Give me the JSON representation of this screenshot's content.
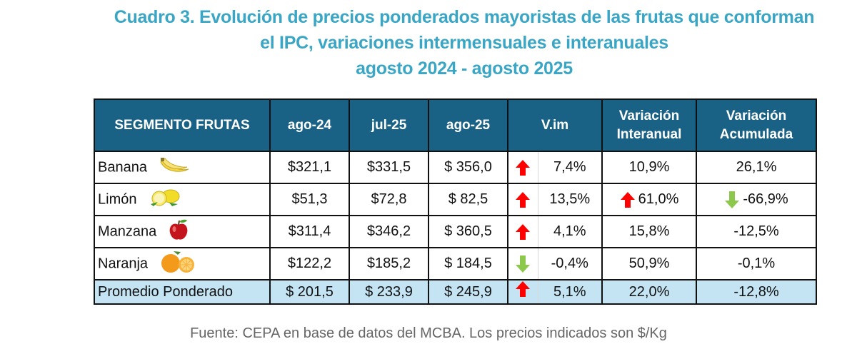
{
  "title": {
    "line1": "Cuadro 3. Evolución de precios ponderados mayoristas de las frutas que conforman",
    "line2": "el IPC, variaciones intermensuales e interanuales",
    "line3": "agosto 2024 - agosto 2025"
  },
  "colors": {
    "title": "#3aa6c5",
    "header_bg": "#1a6285",
    "total_bg": "#c4e4f3",
    "up_arrow": "#ff0000",
    "down_arrow": "#8cc84b"
  },
  "table": {
    "headers": {
      "segment": "SEGMENTO FRUTAS",
      "ago24": "ago-24",
      "jul25": "jul-25",
      "ago25": "ago-25",
      "vim": "V.im",
      "interanual_1": "Variación",
      "interanual_2": "Interanual",
      "acumulada_1": "Variación",
      "acumulada_2": "Acumulada"
    },
    "rows": [
      {
        "name": "Banana",
        "icon": "banana-icon",
        "ago24": "$321,1",
        "jul25": "$331,5",
        "ago25": "$ 356,0",
        "vim_dir": "up",
        "vim": "7,4%",
        "interanual_dir": "",
        "interanual": "10,9%",
        "acumulada_dir": "",
        "acumulada": "26,1%"
      },
      {
        "name": "Limón",
        "icon": "lemon-icon",
        "ago24": "$51,3",
        "jul25": "$72,8",
        "ago25": "$ 82,5",
        "vim_dir": "up",
        "vim": "13,5%",
        "interanual_dir": "up",
        "interanual": "61,0%",
        "acumulada_dir": "down",
        "acumulada": "-66,9%"
      },
      {
        "name": "Manzana",
        "icon": "apple-icon",
        "ago24": "$311,4",
        "jul25": "$346,2",
        "ago25": "$ 360,5",
        "vim_dir": "up",
        "vim": "4,1%",
        "interanual_dir": "",
        "interanual": "15,8%",
        "acumulada_dir": "",
        "acumulada": "-12,5%"
      },
      {
        "name": "Naranja",
        "icon": "orange-icon",
        "ago24": "$122,2",
        "jul25": "$185,2",
        "ago25": "$ 184,5",
        "vim_dir": "down",
        "vim": "-0,4%",
        "interanual_dir": "",
        "interanual": "50,9%",
        "acumulada_dir": "",
        "acumulada": "-0,1%"
      }
    ],
    "total": {
      "name": "Promedio Ponderado",
      "ago24": "$ 201,5",
      "jul25": "$ 233,9",
      "ago25": "$ 245,9",
      "vim_dir": "up",
      "vim": "5,1%",
      "interanual": "22,0%",
      "acumulada": "-12,8%"
    }
  },
  "footer": "Fuente: CEPA en base de datos del MCBA. Los precios indicados son $/Kg"
}
